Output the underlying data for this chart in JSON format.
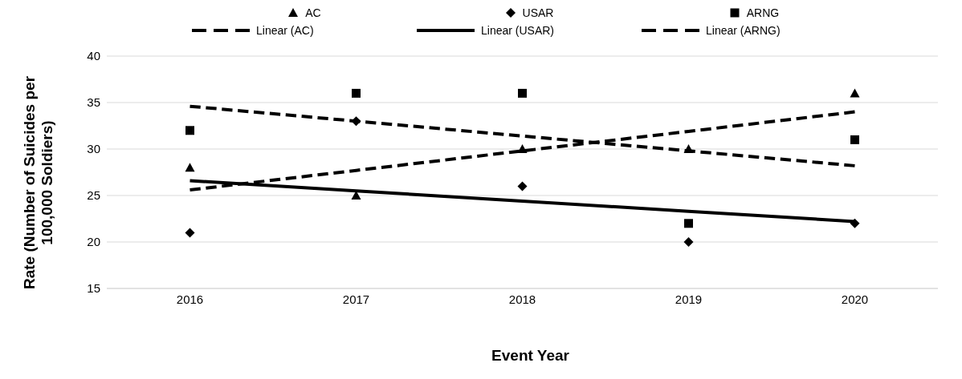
{
  "chart_data": {
    "type": "scatter",
    "xlabel": "Event Year",
    "ylabel": "Rate (Number of Suicides per 100,000 Soldiers)",
    "categories": [
      "2016",
      "2017",
      "2018",
      "2019",
      "2020"
    ],
    "series": [
      {
        "name": "AC",
        "type": "scatter",
        "marker": "triangle",
        "color": "#000000",
        "values": [
          28,
          25,
          30,
          30,
          36
        ]
      },
      {
        "name": "USAR",
        "type": "scatter",
        "marker": "diamond",
        "color": "#000000",
        "values": [
          21,
          33,
          26,
          20,
          22
        ]
      },
      {
        "name": "ARNG",
        "type": "scatter",
        "marker": "square",
        "color": "#000000",
        "values": [
          32,
          36,
          36,
          22,
          31
        ]
      },
      {
        "name": "Linear (AC)",
        "type": "line",
        "line_style": "dashed",
        "marker": "none",
        "color": "#000000",
        "values": [
          25.6,
          27.7,
          29.8,
          31.9,
          34.0
        ]
      },
      {
        "name": "Linear (USAR)",
        "type": "line",
        "line_style": "solid",
        "marker": "none",
        "color": "#000000",
        "values": [
          26.6,
          25.5,
          24.4,
          23.3,
          22.2
        ]
      },
      {
        "name": "Linear (ARNG)",
        "type": "line",
        "line_style": "dashed",
        "marker": "none",
        "color": "#000000",
        "values": [
          34.6,
          33.0,
          31.4,
          29.8,
          28.2
        ]
      }
    ],
    "ylim": [
      15,
      40
    ],
    "yticks": [
      15,
      20,
      25,
      30,
      35,
      40
    ],
    "grid": "y",
    "legend": "top"
  }
}
